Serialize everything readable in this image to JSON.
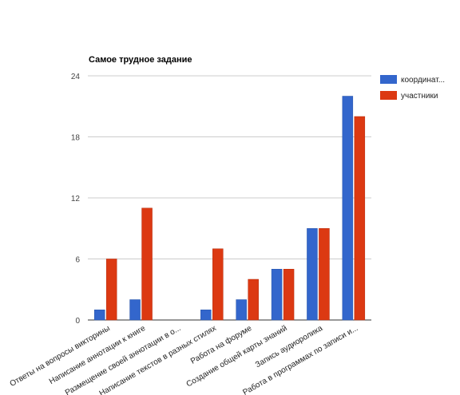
{
  "chart_data": {
    "type": "bar",
    "title": "Самое трудное задание",
    "xlabel": "",
    "ylabel": "",
    "ylim": [
      0,
      24
    ],
    "yticks": [
      0,
      6,
      12,
      18,
      24
    ],
    "grid": true,
    "legend_position": "right",
    "categories": [
      "Ответы на вопросы викторины",
      "Написание аннотации к книге",
      "Размещение своей аннотации в о...",
      "Написание текстов в разных стилях",
      "Работа на форуме",
      "Создание общей карты знаний",
      "Запись аудиоролика",
      "Работа в программах по записи и..."
    ],
    "series": [
      {
        "name": "координат...",
        "color": "#3366cc",
        "values": [
          1,
          2,
          0,
          1,
          2,
          5,
          9,
          22
        ]
      },
      {
        "name": "участники",
        "color": "#dc3912",
        "values": [
          6,
          11,
          0,
          7,
          4,
          5,
          9,
          20
        ]
      }
    ]
  }
}
